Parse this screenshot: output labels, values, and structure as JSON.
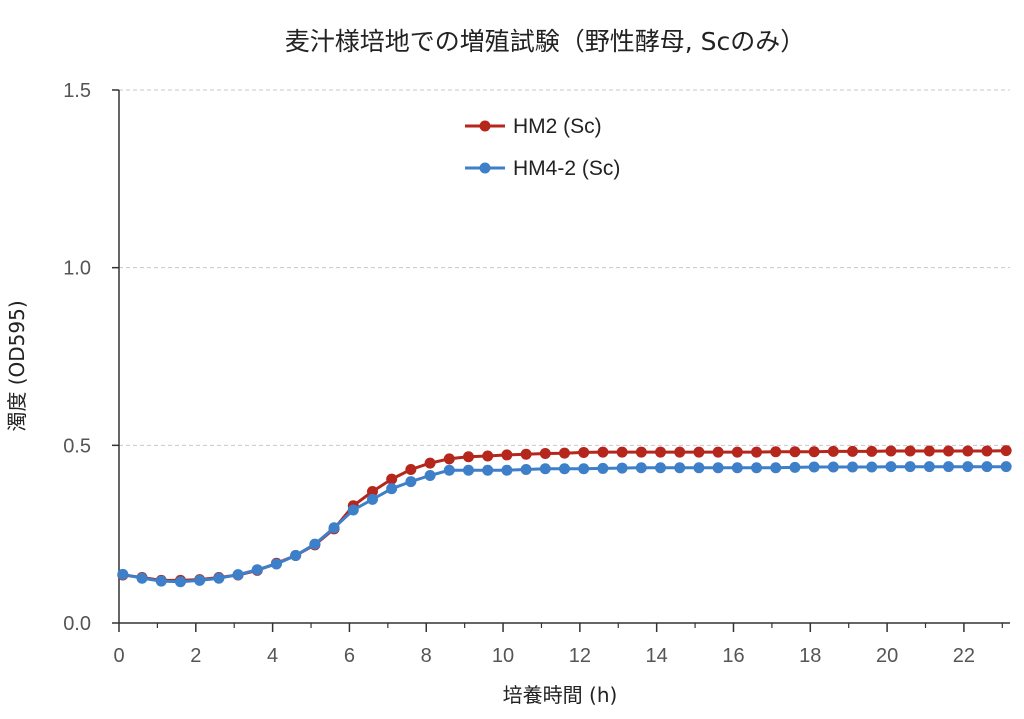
{
  "chart_data": {
    "type": "line",
    "title": "麦汁様培地での増殖試験（野性酵母, Scのみ）",
    "xlabel": "培養時間 (h)",
    "ylabel": "濁度 (OD595)",
    "xlim": [
      0,
      23.2
    ],
    "ylim": [
      0,
      1.5
    ],
    "xticks": [
      "0",
      "2",
      "4",
      "6",
      "8",
      "10",
      "12",
      "14",
      "16",
      "18",
      "20",
      "22"
    ],
    "xtick_values": [
      0,
      2,
      4,
      6,
      8,
      10,
      12,
      14,
      16,
      18,
      20,
      22
    ],
    "yticks": [
      "0.0",
      "0.5",
      "1.0",
      "1.5"
    ],
    "ytick_values": [
      0,
      0.5,
      1.0,
      1.5
    ],
    "grid": "horizontal-dashed",
    "legend_position": "top-center",
    "x": [
      0.1,
      0.6,
      1.1,
      1.6,
      2.1,
      2.6,
      3.1,
      3.6,
      4.1,
      4.6,
      5.1,
      5.6,
      6.1,
      6.6,
      7.1,
      7.6,
      8.1,
      8.6,
      9.1,
      9.6,
      10.1,
      10.6,
      11.1,
      11.6,
      12.1,
      12.6,
      13.1,
      13.6,
      14.1,
      14.6,
      15.1,
      15.6,
      16.1,
      16.6,
      17.1,
      17.6,
      18.1,
      18.6,
      19.1,
      19.6,
      20.1,
      20.6,
      21.1,
      21.6,
      22.1,
      22.6,
      23.1
    ],
    "series": [
      {
        "name": "HM2 (Sc)",
        "color": "#b5261c",
        "values": [
          0.135,
          0.128,
          0.12,
          0.12,
          0.122,
          0.128,
          0.135,
          0.148,
          0.168,
          0.19,
          0.22,
          0.265,
          0.33,
          0.37,
          0.405,
          0.432,
          0.45,
          0.462,
          0.468,
          0.47,
          0.473,
          0.475,
          0.477,
          0.478,
          0.48,
          0.481,
          0.481,
          0.481,
          0.481,
          0.481,
          0.481,
          0.481,
          0.481,
          0.481,
          0.482,
          0.482,
          0.482,
          0.483,
          0.483,
          0.483,
          0.484,
          0.484,
          0.484,
          0.484,
          0.484,
          0.484,
          0.485
        ]
      },
      {
        "name": "HM4-2 (Sc)",
        "color": "#3d7fc8",
        "values": [
          0.137,
          0.126,
          0.118,
          0.116,
          0.12,
          0.126,
          0.136,
          0.15,
          0.166,
          0.19,
          0.222,
          0.268,
          0.318,
          0.348,
          0.378,
          0.398,
          0.415,
          0.43,
          0.43,
          0.43,
          0.43,
          0.432,
          0.434,
          0.434,
          0.434,
          0.435,
          0.436,
          0.437,
          0.437,
          0.437,
          0.437,
          0.437,
          0.437,
          0.437,
          0.437,
          0.438,
          0.439,
          0.439,
          0.439,
          0.439,
          0.44,
          0.44,
          0.44,
          0.44,
          0.44,
          0.44,
          0.44
        ]
      }
    ]
  }
}
